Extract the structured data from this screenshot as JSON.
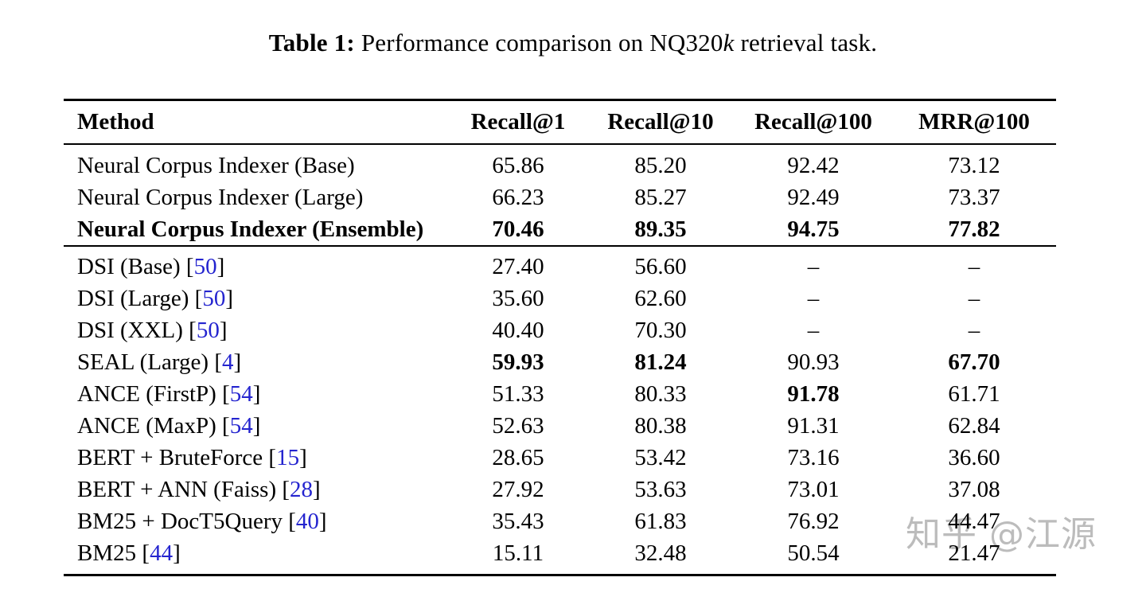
{
  "caption": {
    "label": "Table 1:",
    "body": " Performance comparison on NQ320",
    "kvar": "k",
    "tail": " retrieval task."
  },
  "table": {
    "columns": [
      "Method",
      "Recall@1",
      "Recall@10",
      "Recall@100",
      "MRR@100"
    ],
    "groups": [
      {
        "rows": [
          {
            "method": "Neural Corpus Indexer (Base)",
            "cite": null,
            "bold_method": false,
            "values": [
              "65.86",
              "85.20",
              "92.42",
              "73.12"
            ],
            "bold": [
              false,
              false,
              false,
              false
            ]
          },
          {
            "method": "Neural Corpus Indexer (Large)",
            "cite": null,
            "bold_method": false,
            "values": [
              "66.23",
              "85.27",
              "92.49",
              "73.37"
            ],
            "bold": [
              false,
              false,
              false,
              false
            ]
          },
          {
            "method": "Neural Corpus Indexer (Ensemble)",
            "cite": null,
            "bold_method": true,
            "values": [
              "70.46",
              "89.35",
              "94.75",
              "77.82"
            ],
            "bold": [
              true,
              true,
              true,
              true
            ]
          }
        ]
      },
      {
        "rows": [
          {
            "method": "DSI (Base)",
            "cite": "50",
            "bold_method": false,
            "values": [
              "27.40",
              "56.60",
              "–",
              "–"
            ],
            "bold": [
              false,
              false,
              false,
              false
            ]
          },
          {
            "method": "DSI (Large)",
            "cite": "50",
            "bold_method": false,
            "values": [
              "35.60",
              "62.60",
              "–",
              "–"
            ],
            "bold": [
              false,
              false,
              false,
              false
            ]
          },
          {
            "method": "DSI (XXL)",
            "cite": "50",
            "bold_method": false,
            "values": [
              "40.40",
              "70.30",
              "–",
              "–"
            ],
            "bold": [
              false,
              false,
              false,
              false
            ]
          },
          {
            "method": "SEAL (Large)",
            "cite": "4",
            "bold_method": false,
            "values": [
              "59.93",
              "81.24",
              "90.93",
              "67.70"
            ],
            "bold": [
              true,
              true,
              false,
              true
            ]
          },
          {
            "method": "ANCE (FirstP)",
            "cite": "54",
            "bold_method": false,
            "values": [
              "51.33",
              "80.33",
              "91.78",
              "61.71"
            ],
            "bold": [
              false,
              false,
              true,
              false
            ]
          },
          {
            "method": "ANCE (MaxP)",
            "cite": "54",
            "bold_method": false,
            "values": [
              "52.63",
              "80.38",
              "91.31",
              "62.84"
            ],
            "bold": [
              false,
              false,
              false,
              false
            ]
          },
          {
            "method": "BERT + BruteForce",
            "cite": "15",
            "bold_method": false,
            "values": [
              "28.65",
              "53.42",
              "73.16",
              "36.60"
            ],
            "bold": [
              false,
              false,
              false,
              false
            ]
          },
          {
            "method": "BERT + ANN (Faiss)",
            "cite": "28",
            "bold_method": false,
            "values": [
              "27.92",
              "53.63",
              "73.01",
              "37.08"
            ],
            "bold": [
              false,
              false,
              false,
              false
            ]
          },
          {
            "method": "BM25 + DocT5Query",
            "cite": "40",
            "bold_method": false,
            "values": [
              "35.43",
              "61.83",
              "76.92",
              "44.47"
            ],
            "bold": [
              false,
              false,
              false,
              false
            ]
          },
          {
            "method": "BM25",
            "cite": "44",
            "bold_method": false,
            "values": [
              "15.11",
              "32.48",
              "50.54",
              "21.47"
            ],
            "bold": [
              false,
              false,
              false,
              false
            ]
          }
        ]
      }
    ]
  },
  "watermark": {
    "text": "知乎 @江源"
  },
  "colors": {
    "citation": "#2424cf",
    "watermark": "#bcbcbc",
    "text": "#000000",
    "background": "#ffffff"
  }
}
